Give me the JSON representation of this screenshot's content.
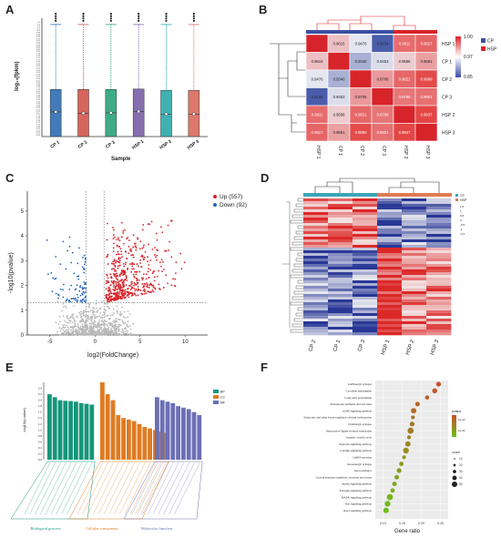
{
  "panels": {
    "A": {
      "label": "A",
      "chart_data": {
        "type": "box",
        "xlabel": "Sample",
        "ylabel": "log₁₀(fpkm)",
        "categories": [
          "CP 1",
          "CP 2",
          "CP 3",
          "HSP 1",
          "HSP 2",
          "HSP 3"
        ],
        "colors": [
          "#2f6db0",
          "#d1544a",
          "#2aa27c",
          "#7a5fa6",
          "#2aa8a8",
          "#d9695b"
        ],
        "yticks": [
          "0.00",
          "0.02",
          "0.04",
          "0.06",
          "0.08",
          "0.10",
          "0.12",
          "0.14",
          "0.16",
          "0.18",
          "0.20",
          "0.22",
          "0.24",
          "0.26",
          "0.28",
          "0.30",
          "0.32",
          "0.34",
          "0.36",
          "0.38",
          "0.40",
          "0.42",
          "0.44",
          "0.46",
          "0.48",
          "0.50",
          "0.52",
          "0.54",
          "0.56",
          "0.58",
          "0.60",
          "0.62",
          "0.64",
          "0.66",
          "0.68",
          "0.70",
          "0.72",
          "0.74",
          "0.76",
          "0.78",
          "0.80",
          "0.82",
          "0.84",
          "0.86",
          "0.88",
          "0.90",
          "0.92",
          "0.94",
          "0.96",
          "0.98",
          "1.00",
          "1.2",
          "1.4",
          "1.6",
          "1.8"
        ],
        "boxes": [
          {
            "min": 0,
            "q1": 0,
            "median": 0.55,
            "mean": 0.55,
            "q3": 1.05,
            "max": 2.5
          },
          {
            "min": 0,
            "q1": 0,
            "median": 0.52,
            "mean": 0.52,
            "q3": 1.05,
            "max": 2.5
          },
          {
            "min": 0,
            "q1": 0,
            "median": 0.53,
            "mean": 0.53,
            "q3": 1.05,
            "max": 2.5
          },
          {
            "min": 0,
            "q1": 0,
            "median": 0.56,
            "mean": 0.56,
            "q3": 1.06,
            "max": 2.5
          },
          {
            "min": 0,
            "q1": 0,
            "median": 0.5,
            "mean": 0.5,
            "q3": 1.03,
            "max": 2.5
          },
          {
            "min": 0,
            "q1": 0,
            "median": 0.5,
            "mean": 0.5,
            "q3": 1.03,
            "max": 2.5
          }
        ]
      }
    },
    "B": {
      "label": "B",
      "chart_data": {
        "type": "heatmap",
        "rows": [
          "HSP 1",
          "CP 1",
          "CP 2",
          "CP 3",
          "HSP 2",
          "HSP 3"
        ],
        "cols": [
          "HSP 1",
          "CP 1",
          "CP 2",
          "CP 3",
          "HSP 2",
          "HSP 3"
        ],
        "matrix": [
          [
            1,
            0.9615,
            0.9476,
            0.9134,
            0.9811,
            0.9827
          ],
          [
            0.9615,
            1,
            0.934,
            0.9453,
            0.9588,
            0.9691
          ],
          [
            0.9476,
            0.934,
            1,
            0.9706,
            0.9821,
            0.9889
          ],
          [
            0.9134,
            0.9453,
            0.9706,
            1,
            0.9788,
            0.9801
          ],
          [
            0.9811,
            0.9588,
            0.9821,
            0.9788,
            1,
            0.9937
          ],
          [
            0.9827,
            0.9691,
            0.9889,
            0.9801,
            0.9937,
            1
          ]
        ],
        "labels": [
          [
            "",
            "0.9615",
            "0.9476",
            "0.9134",
            "0.9811",
            "0.9827"
          ],
          [
            "0.9615",
            "",
            "0.9340",
            "0.9453",
            "0.9588",
            "0.9691"
          ],
          [
            "0.9476",
            "0.9340",
            "",
            "0.9706",
            "0.9821",
            "0.9889"
          ],
          [
            "0.9134",
            "0.9453",
            "0.9706",
            "",
            "0.9788",
            "0.9801"
          ],
          [
            "0.9811",
            "0.9588",
            "0.9821",
            "0.9788",
            "",
            "0.9937"
          ],
          [
            "0.9827",
            "0.9691",
            "0.9889",
            "0.9801",
            "0.9937",
            ""
          ]
        ],
        "scale_ticks": [
          "1.00",
          "0.97",
          "0.85"
        ],
        "legend": [
          {
            "name": "CP",
            "color": "#3b4fa3"
          },
          {
            "name": "HSP",
            "color": "#d7242a"
          }
        ]
      }
    },
    "C": {
      "label": "C",
      "chart_data": {
        "type": "scatter",
        "xlabel": "log2(FoldChange)",
        "ylabel": "-log10(pvalue)",
        "xticks": [
          -5,
          0,
          5,
          10
        ],
        "yticks": [
          0,
          1,
          2,
          3,
          4,
          5
        ],
        "xlim": [
          -7.5,
          12.5
        ],
        "ylim": [
          0,
          5.8
        ],
        "thresholds": {
          "x": [
            -1,
            1
          ],
          "y": 1.3
        },
        "legend": [
          {
            "name": "Up  (557)",
            "color": "#d7242a"
          },
          {
            "name": "Down  (92)",
            "color": "#2563b8"
          }
        ]
      }
    },
    "D": {
      "label": "D",
      "chart_data": {
        "type": "heatmap",
        "cols": [
          "CP 2",
          "CP 1",
          "CP 3",
          "HSP 1",
          "HSP 2",
          "HSP 3"
        ],
        "scale_ticks": [
          "1.5",
          "1",
          "0.5",
          "0",
          "-0.5",
          "-1",
          "-1.5"
        ],
        "legend": [
          {
            "name": "CP",
            "color": "#3aa6b9"
          },
          {
            "name": "HSP",
            "color": "#e07b53"
          }
        ]
      }
    },
    "E": {
      "label": "E",
      "chart_data": {
        "type": "bar",
        "ylabel": "-log10(p-value)",
        "yticks": [
          "0.0",
          "0.2",
          "0.4",
          "0.6",
          "0.8",
          "1.0",
          "1.2",
          "1.4",
          "1.6",
          "1.8",
          "2.0",
          "2.2",
          "2.4"
        ],
        "groups": [
          {
            "name": "Biological process",
            "legend": "BP",
            "color": "#15967a",
            "values": [
              2.2,
              2.1,
              2.0,
              1.98,
              1.97,
              1.95,
              1.9,
              1.88,
              1.85
            ]
          },
          {
            "name": "Cellular component",
            "legend": "CC",
            "color": "#e07b22",
            "values": [
              2.6,
              2.2,
              2.0,
              1.5,
              1.4,
              1.35,
              1.3,
              1.2,
              1.1,
              1.05,
              1.0,
              0.95,
              0.9
            ]
          },
          {
            "name": "Molecular function",
            "legend": "MF",
            "color": "#6b6fb5",
            "values": [
              2.1,
              2.0,
              1.95,
              1.9,
              1.8,
              1.75,
              1.7,
              1.6,
              1.5
            ]
          }
        ]
      }
    },
    "F": {
      "label": "F",
      "chart_data": {
        "type": "bubble",
        "xlabel": "Gene ratio",
        "xticks": [
          "0.10",
          "0.15",
          "0.20",
          "0.25"
        ],
        "xlim": [
          0.08,
          0.27
        ],
        "pathways": [
          {
            "name": "GABAergic synapse",
            "ratio": 0.245,
            "p": 0.01,
            "count": 20
          },
          {
            "name": "Circadian entrainment",
            "ratio": 0.235,
            "p": 0.012,
            "count": 22
          },
          {
            "name": "Long-term potentiation",
            "ratio": 0.215,
            "p": 0.015,
            "count": 15
          },
          {
            "name": "Aldosterone synthesis and secretion",
            "ratio": 0.19,
            "p": 0.018,
            "count": 18
          },
          {
            "name": "cGMP signaling pathway",
            "ratio": 0.18,
            "p": 0.02,
            "count": 25
          },
          {
            "name": "Endocrine and other factor-regulated calcium reabsorption",
            "ratio": 0.178,
            "p": 0.022,
            "count": 12
          },
          {
            "name": "Cholinergic synapse",
            "ratio": 0.176,
            "p": 0.024,
            "count": 20
          },
          {
            "name": "Neuroactive ligand-receptor interaction",
            "ratio": 0.172,
            "p": 0.026,
            "count": 30
          },
          {
            "name": "Synaptic vesicle cycle",
            "ratio": 0.168,
            "p": 0.028,
            "count": 13
          },
          {
            "name": "Oxytocin signaling pathway",
            "ratio": 0.165,
            "p": 0.03,
            "count": 24
          },
          {
            "name": "Calcium signaling pathway",
            "ratio": 0.16,
            "p": 0.032,
            "count": 28
          },
          {
            "name": "GnRH secretion",
            "ratio": 0.155,
            "p": 0.034,
            "count": 12
          },
          {
            "name": "Serotonergic synapse",
            "ratio": 0.148,
            "p": 0.036,
            "count": 17
          },
          {
            "name": "Axon guidance",
            "ratio": 0.142,
            "p": 0.038,
            "count": 20
          },
          {
            "name": "Growth hormone synthesis, secretion and action",
            "ratio": 0.136,
            "p": 0.04,
            "count": 18
          },
          {
            "name": "Apelin signaling pathway",
            "ratio": 0.13,
            "p": 0.042,
            "count": 19
          },
          {
            "name": "Estrogen signaling pathway",
            "ratio": 0.125,
            "p": 0.044,
            "count": 17
          },
          {
            "name": "MAPK signaling pathway",
            "ratio": 0.118,
            "p": 0.046,
            "count": 30
          },
          {
            "name": "Ras signaling pathway",
            "ratio": 0.112,
            "p": 0.048,
            "count": 28
          },
          {
            "name": "Rap1 signaling pathway",
            "ratio": 0.108,
            "p": 0.05,
            "count": 26
          }
        ],
        "color_legend_title": "pvalue",
        "color_ticks": [
          "1e-02",
          "2e-02"
        ],
        "size_legend_title": "count",
        "size_ticks": [
          "10",
          "20",
          "30",
          "40",
          "50"
        ]
      }
    }
  }
}
